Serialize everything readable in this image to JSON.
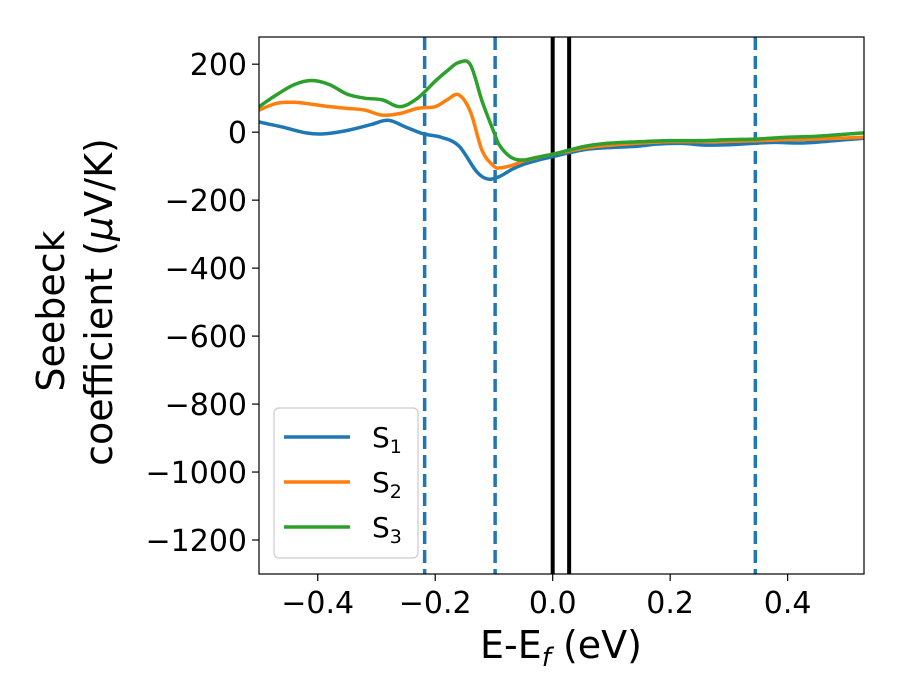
{
  "chart_data": {
    "type": "line",
    "xlabel": "E-E",
    "xlabel_sub": "f",
    "xlabel_unit": " (eV)",
    "ylabel_line1": "Seebeck",
    "ylabel_line2_pre": "coefficient  (",
    "ylabel_line2_mu": "μ",
    "ylabel_line2_post": "V/K)",
    "xlim": [
      -0.5,
      0.53
    ],
    "ylim": [
      -1300,
      280
    ],
    "xticks": [
      -0.4,
      -0.2,
      0.0,
      0.2,
      0.4
    ],
    "xtick_labels": [
      "−0.4",
      "−0.2",
      "0.0",
      "0.2",
      "0.4"
    ],
    "yticks": [
      200,
      0,
      -200,
      -400,
      -600,
      -800,
      -1000,
      -1200
    ],
    "ytick_labels": [
      "200",
      "0",
      "−200",
      "−400",
      "−600",
      "−800",
      "−1000",
      "−1200"
    ],
    "legend_position": "lower-left",
    "vlines": [
      {
        "x": -0.218,
        "style": "dashed",
        "color": "#1f77b4"
      },
      {
        "x": -0.098,
        "style": "dashed",
        "color": "#1f77b4"
      },
      {
        "x": 0.0,
        "style": "solid",
        "color": "#000000"
      },
      {
        "x": 0.028,
        "style": "solid",
        "color": "#000000"
      },
      {
        "x": 0.345,
        "style": "dashed",
        "color": "#1f77b4"
      }
    ],
    "series": [
      {
        "name": "S",
        "sub": "1",
        "color": "#1f77b4",
        "x": [
          -0.5,
          -0.46,
          -0.42,
          -0.39,
          -0.35,
          -0.31,
          -0.28,
          -0.25,
          -0.22,
          -0.19,
          -0.16,
          -0.13,
          -0.11,
          -0.09,
          -0.07,
          -0.05,
          -0.02,
          0.0,
          0.03,
          0.06,
          0.1,
          0.14,
          0.18,
          0.22,
          0.26,
          0.3,
          0.34,
          0.38,
          0.42,
          0.46,
          0.5,
          0.53
        ],
        "y": [
          30,
          15,
          -2,
          -5,
          5,
          22,
          35,
          15,
          -5,
          -15,
          -40,
          -115,
          -138,
          -130,
          -110,
          -95,
          -80,
          -72,
          -60,
          -50,
          -45,
          -42,
          -35,
          -33,
          -38,
          -37,
          -33,
          -30,
          -32,
          -28,
          -22,
          -18
        ]
      },
      {
        "name": "S",
        "sub": "2",
        "color": "#ff7f0e",
        "x": [
          -0.5,
          -0.47,
          -0.44,
          -0.41,
          -0.38,
          -0.35,
          -0.32,
          -0.29,
          -0.26,
          -0.23,
          -0.2,
          -0.18,
          -0.16,
          -0.14,
          -0.12,
          -0.1,
          -0.09,
          -0.07,
          -0.05,
          -0.02,
          0.0,
          0.03,
          0.06,
          0.1,
          0.15,
          0.2,
          0.25,
          0.3,
          0.35,
          0.4,
          0.45,
          0.53
        ],
        "y": [
          65,
          85,
          88,
          82,
          75,
          70,
          65,
          50,
          55,
          70,
          75,
          95,
          110,
          60,
          -55,
          -100,
          -105,
          -98,
          -85,
          -72,
          -65,
          -55,
          -45,
          -38,
          -32,
          -28,
          -28,
          -27,
          -25,
          -22,
          -20,
          -15
        ]
      },
      {
        "name": "S",
        "sub": "3",
        "color": "#2ca02c",
        "x": [
          -0.5,
          -0.47,
          -0.44,
          -0.41,
          -0.38,
          -0.35,
          -0.32,
          -0.29,
          -0.26,
          -0.23,
          -0.2,
          -0.18,
          -0.16,
          -0.14,
          -0.12,
          -0.1,
          -0.09,
          -0.07,
          -0.05,
          -0.03,
          0.0,
          0.03,
          0.06,
          0.1,
          0.15,
          0.2,
          0.25,
          0.3,
          0.35,
          0.4,
          0.45,
          0.53
        ],
        "y": [
          75,
          110,
          140,
          152,
          140,
          112,
          100,
          95,
          75,
          100,
          150,
          180,
          205,
          198,
          90,
          0,
          -40,
          -75,
          -82,
          -75,
          -65,
          -52,
          -40,
          -32,
          -28,
          -25,
          -25,
          -22,
          -20,
          -15,
          -12,
          -2
        ]
      }
    ]
  }
}
